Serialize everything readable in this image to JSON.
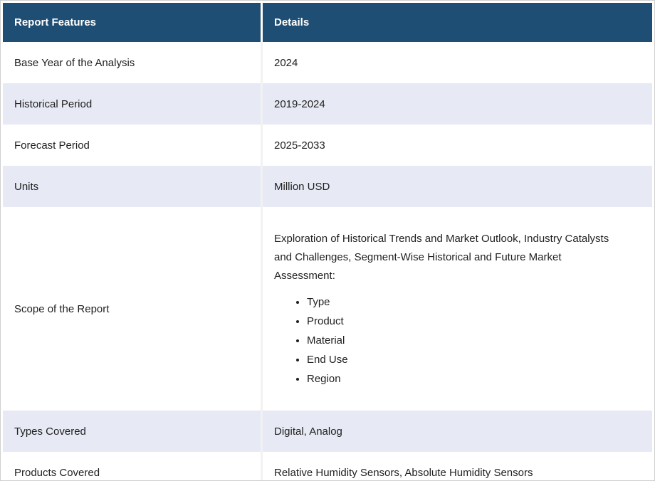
{
  "table": {
    "title_semantic": "report-features-table",
    "columns": [
      {
        "label": "Report Features"
      },
      {
        "label": "Details"
      }
    ],
    "rows": [
      {
        "feature": "Base Year of the Analysis",
        "detail": "2024"
      },
      {
        "feature": "Historical Period",
        "detail": "2019-2024"
      },
      {
        "feature": "Forecast Period",
        "detail": "2025-2033"
      },
      {
        "feature": "Units",
        "detail": "Million USD"
      },
      {
        "feature": "Scope of the Report",
        "detail": "Exploration of Historical Trends and Market Outlook, Industry Catalysts and Challenges, Segment-Wise Historical and Future Market Assessment:",
        "bullets": [
          "Type",
          "Product",
          "Material",
          "End Use",
          "Region"
        ]
      },
      {
        "feature": "Types Covered",
        "detail": "Digital, Analog"
      },
      {
        "feature": "Products Covered",
        "detail": "Relative Humidity Sensors, Absolute Humidity Sensors"
      }
    ],
    "colors": {
      "header_bg": "#1f4e74",
      "header_text": "#ffffff",
      "row_bg": "#ffffff",
      "row_alt_bg": "#e7e9f4",
      "body_text": "#1f1f1f",
      "outer_border": "#cfcfcf"
    }
  }
}
